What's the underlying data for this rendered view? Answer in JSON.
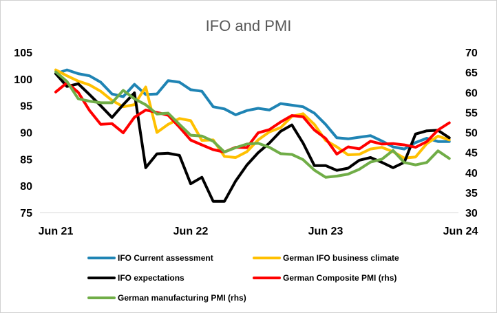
{
  "chart_data": {
    "type": "line",
    "title": "IFO and PMI",
    "x_tick_labels": [
      "Jun 21",
      "Jun 22",
      "Jun 23",
      "Jun 24"
    ],
    "x_start": "2021-06",
    "y_left": {
      "range": [
        75,
        105
      ],
      "ticks": [
        75,
        80,
        85,
        90,
        95,
        100,
        105
      ]
    },
    "y_right": {
      "range": [
        30,
        70
      ],
      "ticks": [
        30,
        35,
        40,
        45,
        50,
        55,
        60,
        65,
        70
      ]
    },
    "grid": false,
    "legend_position": "bottom",
    "series": [
      {
        "name": "IFO Current assessment",
        "axis": "left",
        "color": "#1f84b4",
        "values": [
          101.0,
          101.7,
          101.0,
          100.6,
          99.4,
          97.2,
          96.7,
          99.0,
          97.1,
          97.2,
          99.7,
          99.4,
          98.0,
          97.7,
          94.8,
          94.4,
          93.3,
          94.1,
          94.5,
          94.2,
          95.4,
          95.1,
          94.8,
          93.6,
          91.5,
          89.0,
          88.8,
          89.1,
          89.4,
          88.4,
          87.3,
          86.9,
          88.1,
          88.9,
          88.3,
          88.3
        ]
      },
      {
        "name": "German IFO business climate",
        "axis": "left",
        "color": "#ffc000",
        "values": [
          101.7,
          100.6,
          99.6,
          98.9,
          97.7,
          96.0,
          94.8,
          95.2,
          98.5,
          90.0,
          91.5,
          92.6,
          92.2,
          88.5,
          88.6,
          85.5,
          85.3,
          86.4,
          88.6,
          90.1,
          90.9,
          93.0,
          93.5,
          91.5,
          88.5,
          87.3,
          85.8,
          85.9,
          86.9,
          87.2,
          86.4,
          85.2,
          85.4,
          87.9,
          89.3,
          88.6
        ]
      },
      {
        "name": "IFO expectations",
        "axis": "left",
        "color": "#000000",
        "values": [
          101.0,
          98.6,
          99.1,
          97.1,
          95.0,
          92.8,
          95.2,
          97.4,
          83.4,
          86.0,
          86.1,
          85.7,
          80.4,
          81.6,
          77.1,
          77.1,
          80.9,
          83.9,
          86.2,
          88.0,
          90.2,
          91.4,
          88.0,
          83.8,
          83.8,
          82.9,
          83.3,
          84.8,
          85.3,
          84.4,
          83.4,
          84.4,
          89.7,
          90.3,
          90.4,
          89.0
        ]
      },
      {
        "name": "German Composite PMI (rhs)",
        "axis": "right",
        "color": "#ff0000",
        "values": [
          60.1,
          62.4,
          60.0,
          55.5,
          52.0,
          52.2,
          49.9,
          53.8,
          55.6,
          55.0,
          54.3,
          51.3,
          48.1,
          46.9,
          45.7,
          45.1,
          46.3,
          46.2,
          49.9,
          50.7,
          52.6,
          54.2,
          53.9,
          50.6,
          48.5,
          44.6,
          46.4,
          45.9,
          47.8,
          47.1,
          47.2,
          46.9,
          46.3,
          47.7,
          50.6,
          52.4
        ]
      },
      {
        "name": "German manufacturing PMI (rhs)",
        "axis": "right",
        "color": "#70ad47",
        "values": [
          65.1,
          62.7,
          58.4,
          57.8,
          57.4,
          57.4,
          60.5,
          58.4,
          56.9,
          54.6,
          54.8,
          52.0,
          49.3,
          49.1,
          47.8,
          45.1,
          46.2,
          47.1,
          47.3,
          46.3,
          44.7,
          44.5,
          43.2,
          40.6,
          38.8,
          39.1,
          39.6,
          40.8,
          42.6,
          43.3,
          45.5,
          42.5,
          41.9,
          42.5,
          45.4,
          43.5
        ]
      }
    ]
  }
}
